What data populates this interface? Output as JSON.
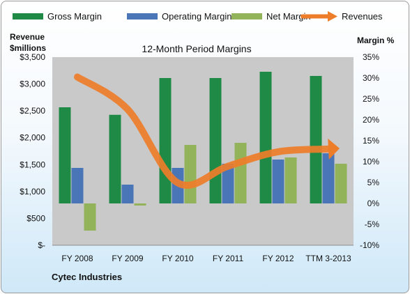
{
  "chart_data": {
    "type": "bar",
    "title": "12-Month Period Margins",
    "footer": "Cytec Industries",
    "y_left": {
      "label_line1": "Revenue",
      "label_line2": "$millions",
      "range": [
        0,
        3500
      ],
      "ticks": [
        "$-",
        "$500",
        "$1,000",
        "$1,500",
        "$2,000",
        "$2,500",
        "$3,000",
        "$3,500"
      ],
      "tick_values": [
        0,
        500,
        1000,
        1500,
        2000,
        2500,
        3000,
        3500
      ]
    },
    "y_right": {
      "label": "Margin %",
      "range": [
        -10,
        35
      ],
      "ticks": [
        "-10%",
        "-5%",
        "0%",
        "5%",
        "10%",
        "15%",
        "20%",
        "25%",
        "30%",
        "35%"
      ],
      "tick_values": [
        -10,
        -5,
        0,
        5,
        10,
        15,
        20,
        25,
        30,
        35
      ]
    },
    "categories": [
      "FY 2008",
      "FY 2009",
      "FY 2010",
      "FY 2011",
      "FY 2012",
      "TTM 3-2013"
    ],
    "series": [
      {
        "name": "Gross Margin",
        "kind": "bar",
        "axis": "right",
        "color": "#1e8a45",
        "values": [
          23,
          21.2,
          30,
          30,
          31.5,
          30.5
        ]
      },
      {
        "name": "Operating Margin",
        "kind": "bar",
        "axis": "right",
        "color": "#4a76b8",
        "values": [
          8.5,
          4.5,
          8.5,
          9.5,
          10.5,
          12
        ]
      },
      {
        "name": "Net Margin",
        "kind": "bar",
        "axis": "right",
        "color": "#93b35a",
        "values": [
          -6.5,
          -0.5,
          14,
          14.5,
          11,
          9.5
        ]
      },
      {
        "name": "Revenues",
        "kind": "line-arrow",
        "axis": "left",
        "color": "#ee7d2a",
        "values": [
          3130,
          2530,
          1160,
          1470,
          1740,
          1790
        ]
      }
    ],
    "grid": false,
    "legend_position": "top"
  }
}
